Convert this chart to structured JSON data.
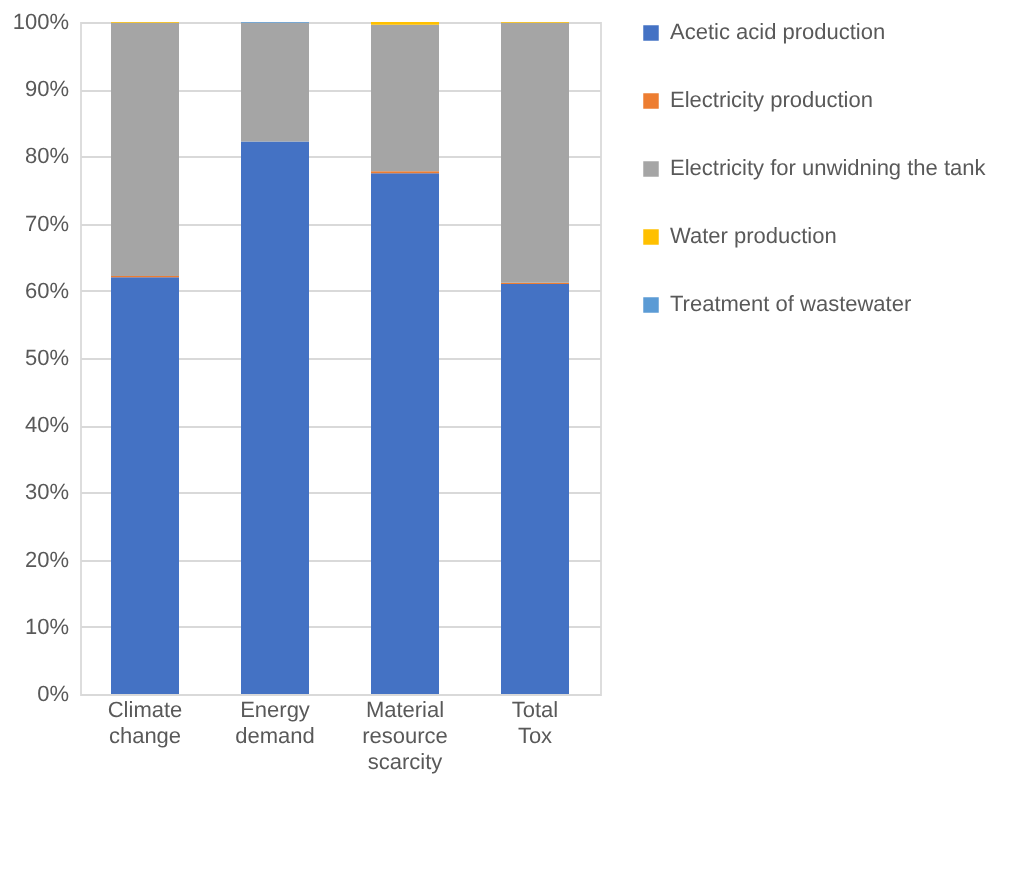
{
  "chart_data": {
    "type": "bar",
    "stacked": true,
    "categories": [
      "Climate change",
      "Energy demand",
      "Material resource scarcity",
      "Total Tox"
    ],
    "series": [
      {
        "name": "Acetic acid production",
        "color": "#4472c4",
        "values": [
          62.0,
          82.2,
          77.5,
          61.0
        ]
      },
      {
        "name": "Electricity production",
        "color": "#ed7d31",
        "values": [
          0.2,
          0,
          0.3,
          0.2
        ]
      },
      {
        "name": "Electricity for unwidning the tank",
        "color": "#a5a5a5",
        "values": [
          37.7,
          17.7,
          21.8,
          38.7
        ]
      },
      {
        "name": "Water production",
        "color": "#ffc000",
        "values": [
          0.1,
          0,
          0.4,
          0.1
        ]
      },
      {
        "name": "Treatment of wastewater",
        "color": "#5b9bd5",
        "values": [
          0,
          0.1,
          0,
          0
        ]
      }
    ],
    "ylim": [
      0,
      100
    ],
    "yticks": [
      {
        "value": 0,
        "label": "0%"
      },
      {
        "value": 10,
        "label": "10%"
      },
      {
        "value": 20,
        "label": "20%"
      },
      {
        "value": 30,
        "label": "30%"
      },
      {
        "value": 40,
        "label": "40%"
      },
      {
        "value": 50,
        "label": "50%"
      },
      {
        "value": 60,
        "label": "60%"
      },
      {
        "value": 70,
        "label": "70%"
      },
      {
        "value": 80,
        "label": "80%"
      },
      {
        "value": 90,
        "label": "90%"
      },
      {
        "value": 100,
        "label": "100%"
      }
    ],
    "grid": "y",
    "legend": "right"
  }
}
